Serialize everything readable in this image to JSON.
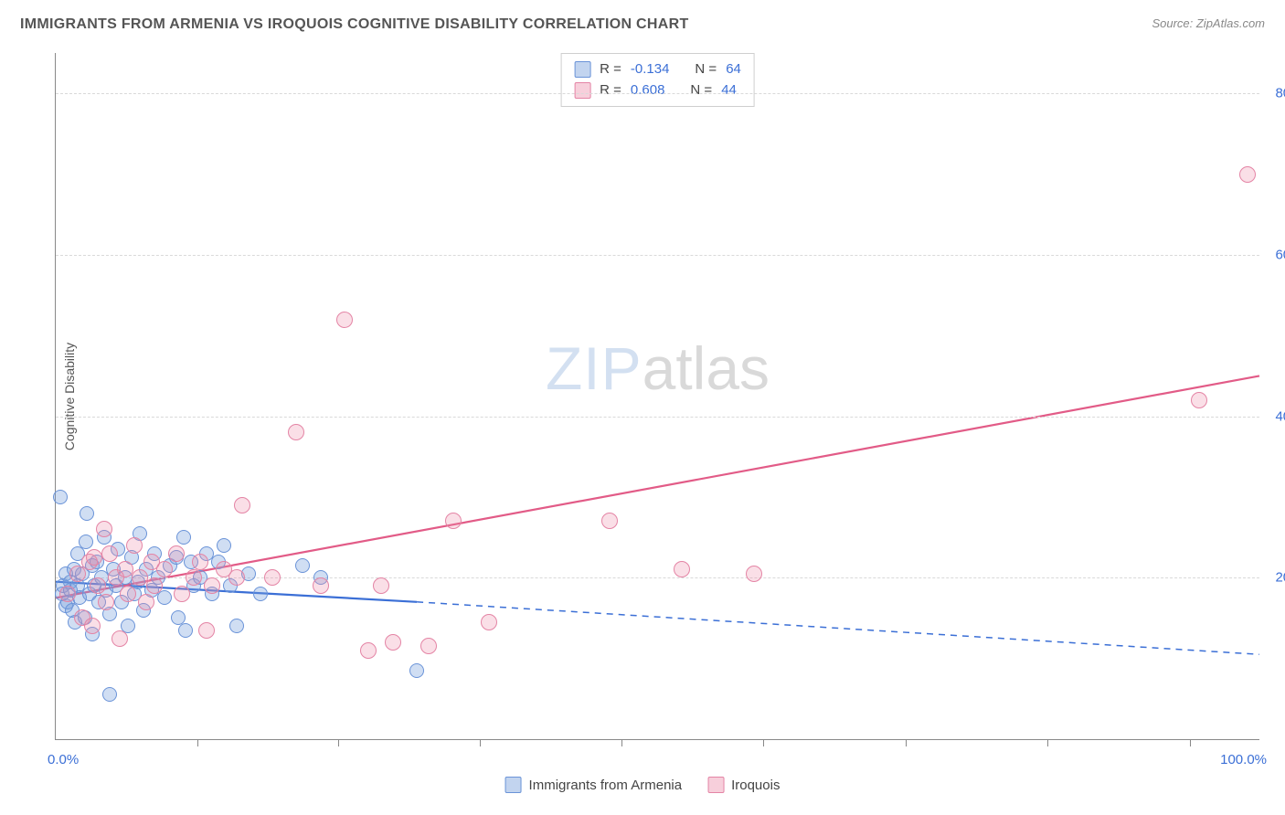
{
  "title": "IMMIGRANTS FROM ARMENIA VS IROQUOIS COGNITIVE DISABILITY CORRELATION CHART",
  "source_label": "Source: ZipAtlas.com",
  "watermark": {
    "part1": "ZIP",
    "part2": "atlas"
  },
  "axes": {
    "ylabel": "Cognitive Disability",
    "x_min_label": "0.0%",
    "x_max_label": "100.0%",
    "x_min": 0.0,
    "x_max": 100.0,
    "y_min": 0.0,
    "y_max": 85.0,
    "y_ticks": [
      {
        "v": 20.0,
        "label": "20.0%"
      },
      {
        "v": 40.0,
        "label": "40.0%"
      },
      {
        "v": 60.0,
        "label": "60.0%"
      },
      {
        "v": 80.0,
        "label": "80.0%"
      }
    ],
    "x_tick_positions": [
      11.8,
      23.5,
      35.2,
      47.0,
      58.8,
      70.6,
      82.4,
      94.2
    ],
    "label_color": "#3b6fd6",
    "label_fontsize": 15,
    "axis_title_fontsize": 14
  },
  "grid": {
    "color": "#d9d9d9",
    "style": "dashed"
  },
  "stats_legend": {
    "rows": [
      {
        "swatch": "blue",
        "r_label": "R =",
        "r_value": "-0.134",
        "n_label": "N =",
        "n_value": "64"
      },
      {
        "swatch": "pink",
        "r_label": "R =",
        "r_value": "0.608",
        "n_label": "N =",
        "n_value": "44"
      }
    ]
  },
  "bottom_legend": [
    {
      "swatch": "blue",
      "label": "Immigrants from Armenia"
    },
    {
      "swatch": "pink",
      "label": "Iroquois"
    }
  ],
  "series": {
    "blue": {
      "color_fill": "rgba(120,160,220,0.35)",
      "color_stroke": "#6a93d8",
      "line_stroke": "#3b6fd6",
      "line_width": 2.2,
      "marker_radius": 8,
      "trend": {
        "x1": 0.0,
        "y1": 19.5,
        "x2": 30.0,
        "y2": 17.0,
        "solid_until_x": 30.0,
        "dash_to_x": 100.0,
        "dash_y": 10.5
      },
      "points": [
        [
          0.5,
          18.0
        ],
        [
          0.6,
          19.0
        ],
        [
          0.8,
          16.5
        ],
        [
          0.8,
          20.5
        ],
        [
          1.0,
          17.0
        ],
        [
          1.2,
          18.5
        ],
        [
          1.2,
          19.5
        ],
        [
          1.4,
          16.0
        ],
        [
          1.5,
          21.0
        ],
        [
          1.6,
          14.5
        ],
        [
          1.8,
          19.0
        ],
        [
          1.8,
          23.0
        ],
        [
          2.0,
          17.5
        ],
        [
          2.2,
          20.5
        ],
        [
          2.4,
          15.0
        ],
        [
          2.5,
          24.5
        ],
        [
          2.6,
          28.0
        ],
        [
          2.8,
          18.0
        ],
        [
          3.0,
          21.5
        ],
        [
          3.0,
          13.0
        ],
        [
          3.2,
          19.0
        ],
        [
          3.4,
          22.0
        ],
        [
          3.6,
          17.0
        ],
        [
          3.8,
          20.0
        ],
        [
          4.0,
          25.0
        ],
        [
          4.2,
          18.5
        ],
        [
          4.5,
          15.5
        ],
        [
          4.8,
          21.0
        ],
        [
          5.0,
          19.0
        ],
        [
          5.2,
          23.5
        ],
        [
          5.5,
          17.0
        ],
        [
          5.8,
          20.0
        ],
        [
          6.0,
          14.0
        ],
        [
          6.3,
          22.5
        ],
        [
          6.5,
          18.0
        ],
        [
          6.8,
          19.5
        ],
        [
          7.0,
          25.5
        ],
        [
          7.3,
          16.0
        ],
        [
          7.5,
          21.0
        ],
        [
          8.0,
          18.5
        ],
        [
          8.2,
          23.0
        ],
        [
          8.5,
          20.0
        ],
        [
          9.0,
          17.5
        ],
        [
          9.5,
          21.5
        ],
        [
          10.0,
          22.5
        ],
        [
          10.2,
          15.0
        ],
        [
          10.6,
          25.0
        ],
        [
          10.8,
          13.5
        ],
        [
          11.2,
          22.0
        ],
        [
          11.5,
          19.0
        ],
        [
          12.0,
          20.0
        ],
        [
          12.5,
          23.0
        ],
        [
          13.0,
          18.0
        ],
        [
          13.5,
          22.0
        ],
        [
          14.0,
          24.0
        ],
        [
          14.5,
          19.0
        ],
        [
          15.0,
          14.0
        ],
        [
          16.0,
          20.5
        ],
        [
          17.0,
          18.0
        ],
        [
          20.5,
          21.5
        ],
        [
          22.0,
          20.0
        ],
        [
          30.0,
          8.5
        ],
        [
          4.5,
          5.5
        ],
        [
          0.4,
          30.0
        ]
      ]
    },
    "pink": {
      "color_fill": "rgba(236,140,170,0.28)",
      "color_stroke": "#e484a5",
      "line_stroke": "#e25b87",
      "line_width": 2.2,
      "marker_radius": 9,
      "trend": {
        "x1": 0.0,
        "y1": 17.5,
        "x2": 100.0,
        "y2": 45.0
      },
      "points": [
        [
          1.0,
          18.0
        ],
        [
          1.8,
          20.5
        ],
        [
          2.2,
          15.0
        ],
        [
          2.8,
          22.0
        ],
        [
          3.0,
          14.0
        ],
        [
          3.2,
          22.5
        ],
        [
          3.5,
          19.0
        ],
        [
          4.0,
          26.0
        ],
        [
          4.2,
          17.0
        ],
        [
          4.5,
          23.0
        ],
        [
          5.0,
          20.0
        ],
        [
          5.3,
          12.5
        ],
        [
          5.8,
          21.0
        ],
        [
          6.0,
          18.0
        ],
        [
          6.5,
          24.0
        ],
        [
          7.0,
          20.0
        ],
        [
          7.5,
          17.0
        ],
        [
          8.0,
          22.0
        ],
        [
          8.2,
          19.0
        ],
        [
          9.0,
          21.0
        ],
        [
          10.0,
          23.0
        ],
        [
          10.5,
          18.0
        ],
        [
          11.5,
          20.0
        ],
        [
          12.0,
          22.0
        ],
        [
          13.0,
          19.0
        ],
        [
          14.0,
          21.0
        ],
        [
          15.0,
          20.0
        ],
        [
          15.5,
          29.0
        ],
        [
          18.0,
          20.0
        ],
        [
          20.0,
          38.0
        ],
        [
          22.0,
          19.0
        ],
        [
          24.0,
          52.0
        ],
        [
          26.0,
          11.0
        ],
        [
          27.0,
          19.0
        ],
        [
          28.0,
          12.0
        ],
        [
          31.0,
          11.5
        ],
        [
          33.0,
          27.0
        ],
        [
          36.0,
          14.5
        ],
        [
          46.0,
          27.0
        ],
        [
          52.0,
          21.0
        ],
        [
          58.0,
          20.5
        ],
        [
          95.0,
          42.0
        ],
        [
          99.0,
          70.0
        ],
        [
          12.5,
          13.5
        ]
      ]
    }
  },
  "colors": {
    "background": "#ffffff",
    "title": "#555555",
    "source": "#888888",
    "axis_line": "#888888"
  }
}
